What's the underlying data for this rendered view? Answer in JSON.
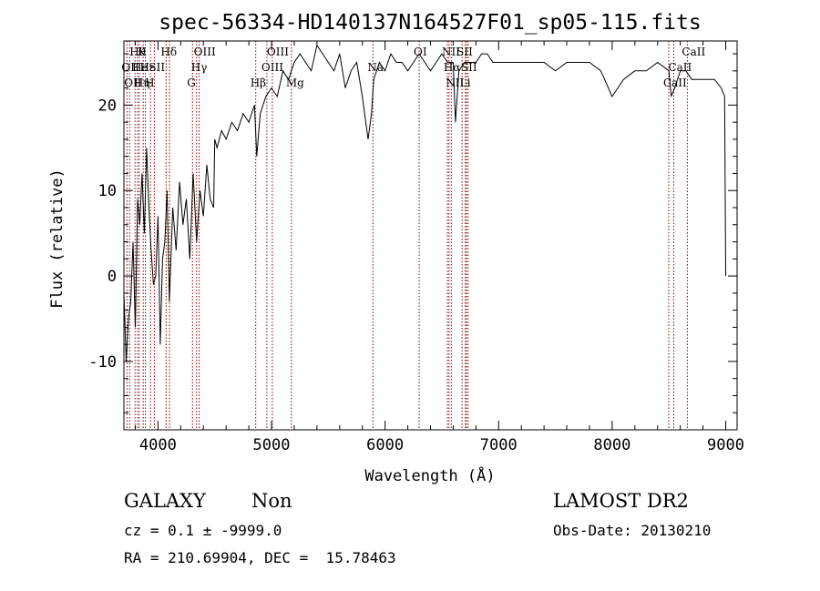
{
  "chart_data": {
    "type": "line",
    "title": "spec-56334-HD140137N164527F01_sp05-115.fits",
    "xlabel": "Wavelength (Å)",
    "ylabel": "Flux (relative)",
    "xlim": [
      3700,
      9100
    ],
    "ylim": [
      -18,
      27.5
    ],
    "xticks": [
      4000,
      5000,
      6000,
      7000,
      8000,
      9000
    ],
    "yticks": [
      -10,
      0,
      10,
      20
    ],
    "grid": false,
    "legend": "none",
    "line_color": "#000000",
    "marker_color": "#8b0000",
    "series": [
      {
        "x": [
          3700,
          3720,
          3740,
          3760,
          3780,
          3800,
          3820,
          3840,
          3860,
          3880,
          3900,
          3920,
          3940,
          3960,
          3980,
          4000,
          4020,
          4040,
          4060,
          4080,
          4100,
          4130,
          4160,
          4190,
          4220,
          4250,
          4280,
          4310,
          4340,
          4370,
          4400,
          4430,
          4460,
          4490,
          4500,
          4520,
          4560,
          4600,
          4650,
          4700,
          4750,
          4800,
          4850,
          4870,
          4900,
          4950,
          5000,
          5050,
          5100,
          5150,
          5200,
          5250,
          5300,
          5350,
          5400,
          5450,
          5500,
          5550,
          5600,
          5650,
          5700,
          5750,
          5800,
          5850,
          5880,
          5900,
          5950,
          6000,
          6050,
          6100,
          6150,
          6200,
          6250,
          6300,
          6350,
          6400,
          6450,
          6500,
          6550,
          6600,
          6620,
          6650,
          6700,
          6750,
          6800,
          6850,
          6900,
          6950,
          7000,
          7100,
          7200,
          7300,
          7400,
          7500,
          7600,
          7700,
          7800,
          7900,
          8000,
          8050,
          8100,
          8200,
          8300,
          8400,
          8500,
          8520,
          8550,
          8600,
          8650,
          8700,
          8800,
          8900,
          8960,
          8990,
          9000
        ],
        "y": [
          -2,
          -10,
          -5,
          -3,
          4,
          -6,
          9,
          6,
          12,
          5,
          15,
          8,
          3,
          -1,
          0,
          7,
          -8,
          2,
          4,
          10,
          -3,
          8,
          3,
          11,
          6,
          9,
          2,
          12,
          4,
          10,
          7,
          13,
          9,
          8,
          16,
          15,
          17,
          16,
          18,
          17,
          19,
          18,
          20,
          14,
          19,
          21,
          22,
          21,
          24,
          23,
          25,
          26,
          25,
          24,
          27,
          26,
          25,
          24,
          26,
          22,
          24,
          25,
          21,
          16,
          19,
          23,
          25,
          24,
          26,
          25,
          25,
          24,
          25,
          26,
          25,
          24,
          25,
          26,
          25,
          25,
          18,
          24,
          25,
          25,
          25,
          26,
          26,
          25,
          25,
          25,
          25,
          25,
          25,
          24,
          25,
          25,
          25,
          24,
          21,
          22,
          23,
          24,
          24,
          25,
          24,
          21,
          22,
          24,
          24,
          23,
          23,
          23,
          22,
          21,
          0
        ]
      }
    ],
    "line_markers": [
      {
        "wl": 3727,
        "label": "OII",
        "row": 2
      },
      {
        "wl": 3750,
        "label": "OII",
        "row": 3
      },
      {
        "wl": 3798,
        "label": "Hθ",
        "row": 1
      },
      {
        "wl": 3820,
        "label": "He",
        "row": 2
      },
      {
        "wl": 3835,
        "label": "Hη",
        "row": 3
      },
      {
        "wl": 3870,
        "label": "K",
        "row": 1
      },
      {
        "wl": 3889,
        "label": "Hε",
        "row": 2
      },
      {
        "wl": 3934,
        "label": "H",
        "row": 3
      },
      {
        "wl": 3968,
        "label": "SII",
        "row": 2
      },
      {
        "wl": 4072,
        "label": "Hδ",
        "row": 1
      },
      {
        "wl": 4102,
        "label": "",
        "row": 0
      },
      {
        "wl": 4304,
        "label": "G",
        "row": 3
      },
      {
        "wl": 4340,
        "label": "Hγ",
        "row": 2
      },
      {
        "wl": 4363,
        "label": "OIII",
        "row": 1
      },
      {
        "wl": 4861,
        "label": "Hβ",
        "row": 3
      },
      {
        "wl": 4959,
        "label": "OIII",
        "row": 2
      },
      {
        "wl": 5007,
        "label": "OIII",
        "row": 1
      },
      {
        "wl": 5175,
        "label": "Mg",
        "row": 3
      },
      {
        "wl": 5893,
        "label": "Na",
        "row": 2
      },
      {
        "wl": 6300,
        "label": "OI",
        "row": 1
      },
      {
        "wl": 6548,
        "label": "NII",
        "row": 1
      },
      {
        "wl": 6563,
        "label": "Hα",
        "row": 2
      },
      {
        "wl": 6583,
        "label": "NII",
        "row": 3
      },
      {
        "wl": 6678,
        "label": "SII",
        "row": 1
      },
      {
        "wl": 6707,
        "label": "Li",
        "row": 3
      },
      {
        "wl": 6716,
        "label": "SII",
        "row": 2
      },
      {
        "wl": 6731,
        "label": "",
        "row": 0
      },
      {
        "wl": 8498,
        "label": "CaII",
        "row": 3
      },
      {
        "wl": 8542,
        "label": "CaII",
        "row": 2
      },
      {
        "wl": 8662,
        "label": "CaII",
        "row": 1
      }
    ]
  },
  "footer": {
    "class_label": "GALAXY",
    "subclass": "Non",
    "cz_line": "cz = 0.1 ± -9999.0",
    "radec_line": "RA = 210.69904, DEC =  15.78463",
    "survey": "LAMOST DR2",
    "obs_date": "Obs-Date: 20130210"
  }
}
